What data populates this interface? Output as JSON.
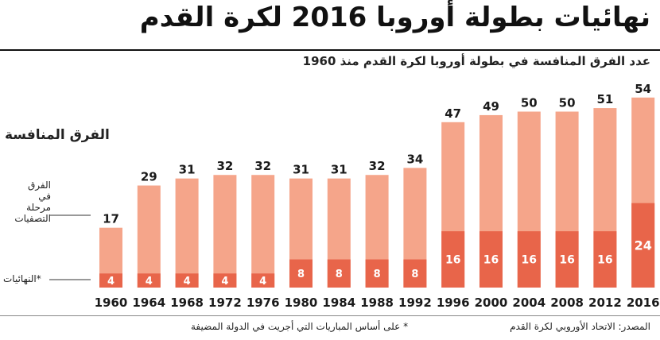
{
  "title": "نهائيات بطولة أوروبا 2016 لكرة القدم",
  "subtitle": "عدد الفرق المنافسة في بطولة أوروبا لكرة القدم منذ 1960",
  "axis_title": "الفرق المنافسة",
  "qualifiers_label": "الفرق في مرحلة التصفيات",
  "finals_label": "*النهائيات",
  "source": "المصدر: الاتحاد الأوروبي لكرة القدم",
  "note": "* على أساس المباريات التي أجريت في الدولة المضيفة",
  "colors": {
    "qualifiers": "#f5a58a",
    "finals": "#e8654a",
    "text_dark": "#1a1a1a"
  },
  "chart_data": {
    "type": "bar",
    "stacked": true,
    "categories": [
      "1960",
      "1964",
      "1968",
      "1972",
      "1976",
      "1980",
      "1984",
      "1988",
      "1992",
      "1996",
      "2000",
      "2004",
      "2008",
      "2012",
      "2016"
    ],
    "totals": [
      17,
      29,
      31,
      32,
      32,
      31,
      31,
      32,
      34,
      47,
      49,
      50,
      50,
      51,
      54
    ],
    "series": [
      {
        "key": "finals",
        "values": [
          4,
          4,
          4,
          4,
          4,
          8,
          8,
          8,
          8,
          16,
          16,
          16,
          16,
          16,
          24
        ]
      }
    ],
    "ylim": [
      0,
      54
    ],
    "grid": false
  }
}
